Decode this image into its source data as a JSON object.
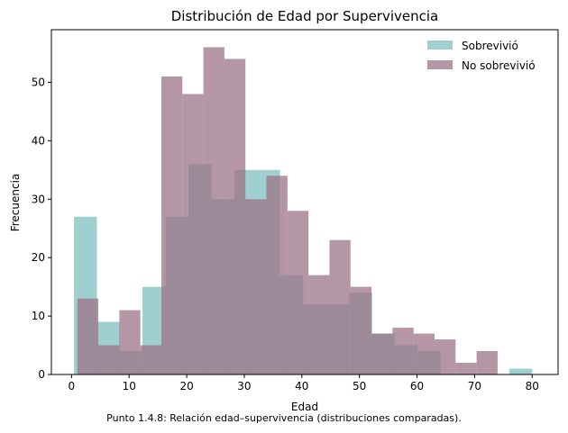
{
  "chart_data": {
    "type": "histogram",
    "title": "Distribución de Edad por Supervivencia",
    "xlabel": "Edad",
    "ylabel": "Frecuencia",
    "xlim": [
      -3.5,
      84.5
    ],
    "ylim": [
      0,
      59
    ],
    "xticks": [
      0,
      10,
      20,
      30,
      40,
      50,
      60,
      70,
      80
    ],
    "yticks": [
      0,
      10,
      20,
      30,
      40,
      50
    ],
    "legend_position": "upper right",
    "series": [
      {
        "name": "Sobrevivió",
        "color": "#7fbfbf",
        "opacity": 0.75,
        "bins": [
          {
            "x0": 0.42,
            "x1": 4.4,
            "count": 27
          },
          {
            "x0": 4.4,
            "x1": 8.4,
            "count": 9
          },
          {
            "x0": 8.4,
            "x1": 12.3,
            "count": 4
          },
          {
            "x0": 12.3,
            "x1": 16.3,
            "count": 15
          },
          {
            "x0": 16.3,
            "x1": 20.3,
            "count": 27
          },
          {
            "x0": 20.3,
            "x1": 24.3,
            "count": 36
          },
          {
            "x0": 24.3,
            "x1": 28.3,
            "count": 30
          },
          {
            "x0": 28.3,
            "x1": 32.2,
            "count": 35
          },
          {
            "x0": 32.2,
            "x1": 36.2,
            "count": 35
          },
          {
            "x0": 36.2,
            "x1": 40.2,
            "count": 17
          },
          {
            "x0": 40.2,
            "x1": 44.2,
            "count": 12
          },
          {
            "x0": 44.2,
            "x1": 48.2,
            "count": 12
          },
          {
            "x0": 48.2,
            "x1": 52.2,
            "count": 14
          },
          {
            "x0": 52.2,
            "x1": 56.1,
            "count": 7
          },
          {
            "x0": 56.1,
            "x1": 60.1,
            "count": 5
          },
          {
            "x0": 60.1,
            "x1": 64.1,
            "count": 4
          },
          {
            "x0": 64.1,
            "x1": 68.1,
            "count": 0
          },
          {
            "x0": 68.1,
            "x1": 72.0,
            "count": 0
          },
          {
            "x0": 72.0,
            "x1": 76.0,
            "count": 0
          },
          {
            "x0": 76.0,
            "x1": 80.0,
            "count": 1
          }
        ]
      },
      {
        "name": "No sobrevivió",
        "color": "#9c7385",
        "opacity": 0.75,
        "bins": [
          {
            "x0": 1.0,
            "x1": 4.65,
            "count": 13
          },
          {
            "x0": 4.65,
            "x1": 8.3,
            "count": 5
          },
          {
            "x0": 8.3,
            "x1": 11.95,
            "count": 11
          },
          {
            "x0": 11.95,
            "x1": 15.6,
            "count": 5
          },
          {
            "x0": 15.6,
            "x1": 19.25,
            "count": 51
          },
          {
            "x0": 19.25,
            "x1": 22.9,
            "count": 48
          },
          {
            "x0": 22.9,
            "x1": 26.55,
            "count": 56
          },
          {
            "x0": 26.55,
            "x1": 30.2,
            "count": 54
          },
          {
            "x0": 30.2,
            "x1": 33.85,
            "count": 30
          },
          {
            "x0": 33.85,
            "x1": 37.5,
            "count": 34
          },
          {
            "x0": 37.5,
            "x1": 41.15,
            "count": 28
          },
          {
            "x0": 41.15,
            "x1": 44.8,
            "count": 17
          },
          {
            "x0": 44.8,
            "x1": 48.45,
            "count": 23
          },
          {
            "x0": 48.45,
            "x1": 52.1,
            "count": 15
          },
          {
            "x0": 52.1,
            "x1": 55.75,
            "count": 7
          },
          {
            "x0": 55.75,
            "x1": 59.4,
            "count": 8
          },
          {
            "x0": 59.4,
            "x1": 63.05,
            "count": 7
          },
          {
            "x0": 63.05,
            "x1": 66.7,
            "count": 6
          },
          {
            "x0": 66.7,
            "x1": 70.35,
            "count": 2
          },
          {
            "x0": 70.35,
            "x1": 74.0,
            "count": 4
          }
        ]
      }
    ]
  },
  "caption": "Punto 1.4.8: Relación edad–supervivencia (distribuciones comparadas)."
}
